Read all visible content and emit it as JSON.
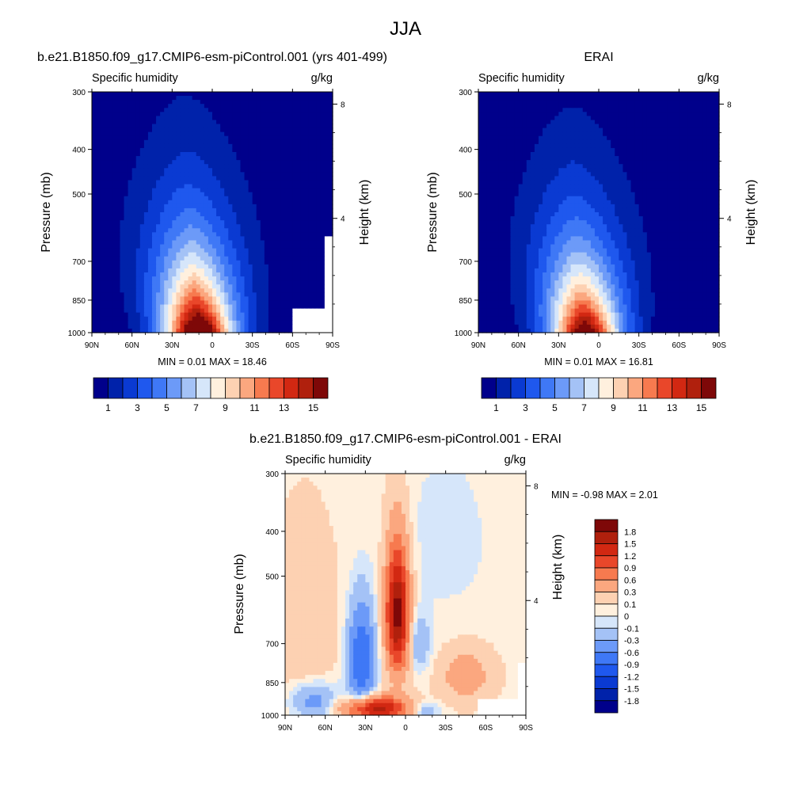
{
  "figure_title": "JJA",
  "chart_data": [
    {
      "type": "heatmap",
      "panel_title": "b.e21.B1850.f09_g17.CMIP6-esm-piControl.001 (yrs 401-499)",
      "left_subtitle": "Specific humidity",
      "right_subtitle": "g/kg",
      "ylabel": "Pressure (mb)",
      "ylabel_right": "Height (km)",
      "x_ticks": [
        "90N",
        "60N",
        "30N",
        "0",
        "30S",
        "60S",
        "90S"
      ],
      "x_range": [
        90,
        -90
      ],
      "y_ticks": [
        300,
        400,
        500,
        700,
        850,
        1000
      ],
      "y_range": [
        300,
        1000
      ],
      "height_ticks": [
        8,
        4
      ],
      "min_text": "MIN =   0.01  MAX =  18.46",
      "min": 0.01,
      "max": 18.46,
      "contour_levels": [
        1,
        2,
        3,
        4,
        5,
        6,
        7,
        8,
        9,
        10,
        11,
        12,
        13,
        14,
        15
      ],
      "colorbar_labels": [
        "1",
        "3",
        "5",
        "7",
        "9",
        "11",
        "13",
        "15"
      ],
      "colors": [
        "#00008b",
        "#0022aa",
        "#0a3ad2",
        "#1f58ee",
        "#3f78f6",
        "#6c9af8",
        "#a4c2f6",
        "#d6e6fa",
        "#fff0de",
        "#fdd1b2",
        "#fba77f",
        "#f77a4f",
        "#e9472a",
        "#d22812",
        "#b0200d",
        "#7e0808"
      ]
    },
    {
      "type": "heatmap",
      "panel_title": "ERAI",
      "left_subtitle": "Specific humidity",
      "right_subtitle": "g/kg",
      "ylabel": "Pressure (mb)",
      "ylabel_right": "Height (km)",
      "x_ticks": [
        "90N",
        "60N",
        "30N",
        "0",
        "30S",
        "60S",
        "90S"
      ],
      "x_range": [
        90,
        -90
      ],
      "y_ticks": [
        300,
        400,
        500,
        700,
        850,
        1000
      ],
      "y_range": [
        300,
        1000
      ],
      "height_ticks": [
        8,
        4
      ],
      "min_text": "MIN =   0.01  MAX =  16.81",
      "min": 0.01,
      "max": 16.81,
      "contour_levels": [
        1,
        2,
        3,
        4,
        5,
        6,
        7,
        8,
        9,
        10,
        11,
        12,
        13,
        14,
        15
      ],
      "colorbar_labels": [
        "1",
        "3",
        "5",
        "7",
        "9",
        "11",
        "13",
        "15"
      ],
      "colors": [
        "#00008b",
        "#0022aa",
        "#0a3ad2",
        "#1f58ee",
        "#3f78f6",
        "#6c9af8",
        "#a4c2f6",
        "#d6e6fa",
        "#fff0de",
        "#fdd1b2",
        "#fba77f",
        "#f77a4f",
        "#e9472a",
        "#d22812",
        "#b0200d",
        "#7e0808"
      ]
    },
    {
      "type": "heatmap",
      "panel_title": "b.e21.B1850.f09_g17.CMIP6-esm-piControl.001 - ERAI",
      "left_subtitle": "Specific humidity",
      "right_subtitle": "g/kg",
      "ylabel": "Pressure (mb)",
      "ylabel_right": "Height (km)",
      "x_ticks": [
        "90N",
        "60N",
        "30N",
        "0",
        "30S",
        "60S",
        "90S"
      ],
      "x_range": [
        90,
        -90
      ],
      "y_ticks": [
        300,
        400,
        500,
        700,
        850,
        1000
      ],
      "y_range": [
        300,
        1000
      ],
      "height_ticks": [
        8,
        4
      ],
      "min_text": "MIN =  -0.98  MAX =   2.01",
      "min": -0.98,
      "max": 2.01,
      "contour_levels": [
        -1.8,
        -1.5,
        -1.2,
        -0.9,
        -0.6,
        -0.3,
        -0.1,
        0,
        0.1,
        0.3,
        0.6,
        0.9,
        1.2,
        1.5,
        1.8
      ],
      "colorbar_labels": [
        "1.8",
        "1.5",
        "1.2",
        "0.9",
        "0.6",
        "0.3",
        "0.1",
        "0",
        "-0.1",
        "-0.3",
        "-0.6",
        "-0.9",
        "-1.2",
        "-1.5",
        "-1.8"
      ],
      "colors": [
        "#00008b",
        "#0022aa",
        "#0a3ad2",
        "#1f58ee",
        "#3f78f6",
        "#6c9af8",
        "#a4c2f6",
        "#d6e6fa",
        "#fff0de",
        "#fdd1b2",
        "#fba77f",
        "#f77a4f",
        "#e9472a",
        "#d22812",
        "#b0200d",
        "#7e0808"
      ]
    }
  ]
}
